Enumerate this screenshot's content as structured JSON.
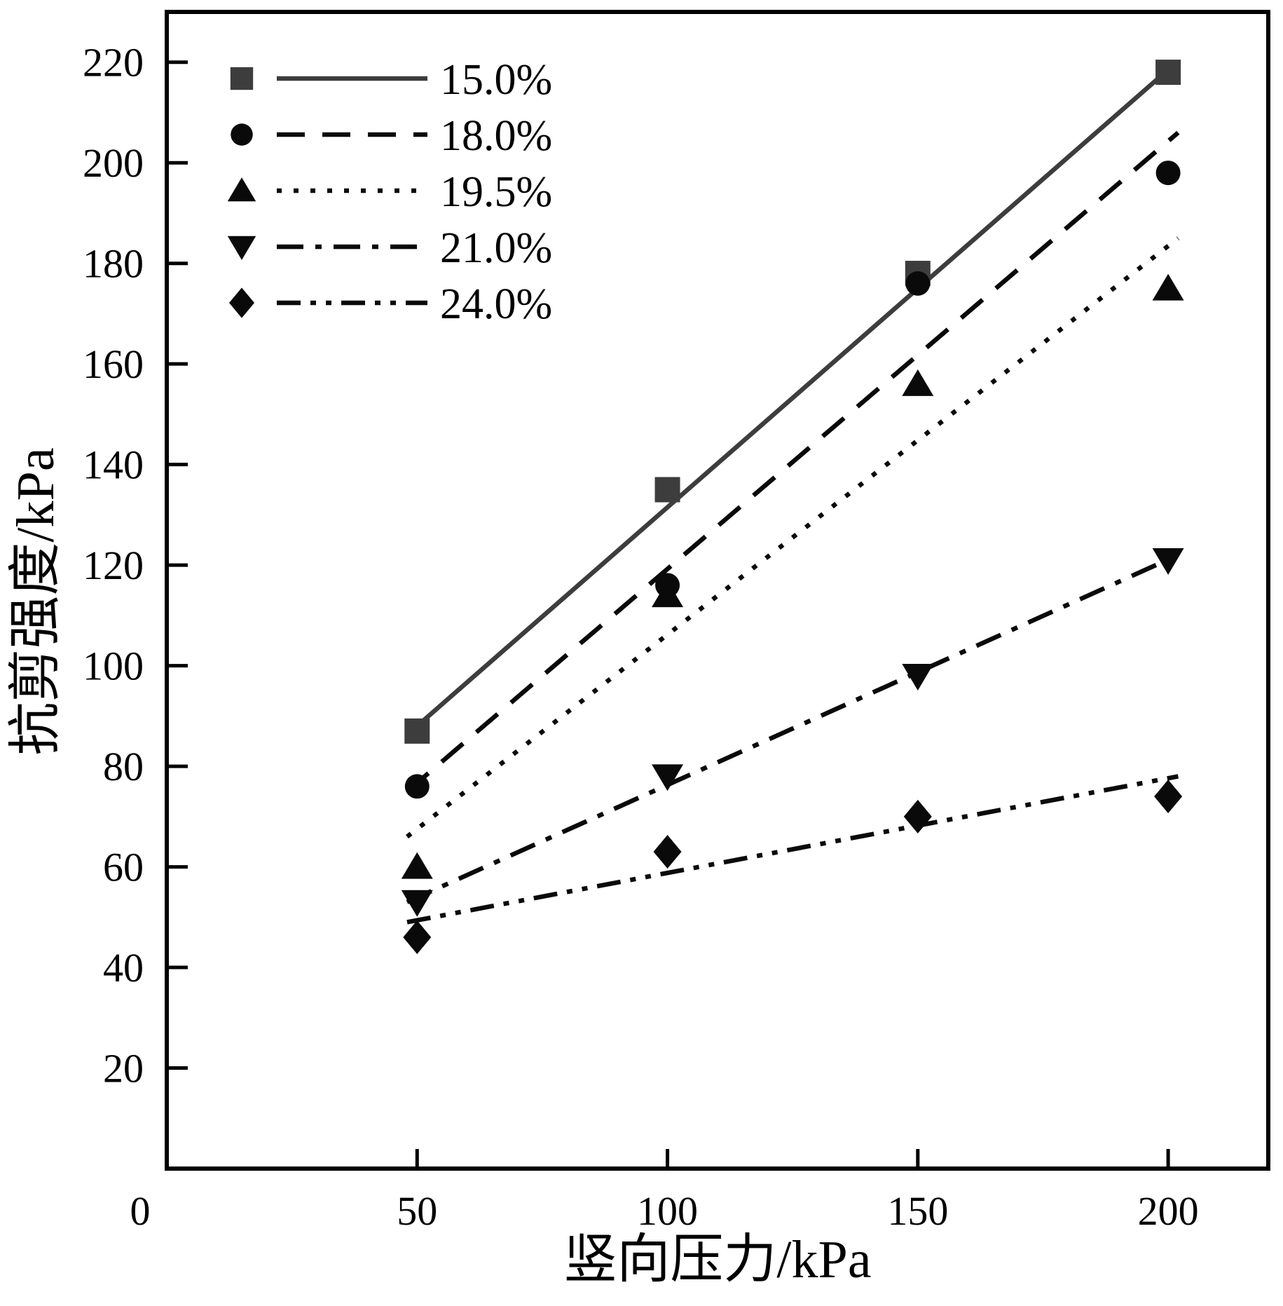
{
  "chart_data": {
    "type": "scatter",
    "title": "",
    "xlabel": "竖向压力/kPa",
    "ylabel": "抗剪强度/kPa",
    "x": [
      50,
      100,
      150,
      200
    ],
    "xlim": [
      0,
      220
    ],
    "ylim": [
      0,
      230
    ],
    "x_ticks": [
      0,
      50,
      100,
      150,
      200
    ],
    "y_ticks": [
      20,
      40,
      60,
      80,
      100,
      120,
      140,
      160,
      180,
      200,
      220
    ],
    "grid": false,
    "legend_position": "top-left",
    "background_color": "#ffffff",
    "axis_color": "#000000",
    "series": [
      {
        "name": "15.0%",
        "marker": "square",
        "line": "solid",
        "color": "#3d3d3d",
        "values": [
          87,
          135,
          178,
          218
        ],
        "trend": [
          50,
          88,
          200,
          218.5
        ]
      },
      {
        "name": "18.0%",
        "marker": "circle",
        "line": "dashed",
        "color": "#0a0a0a",
        "values": [
          76,
          116,
          176,
          198
        ],
        "trend": [
          48,
          75,
          202,
          206
        ]
      },
      {
        "name": "19.5%",
        "marker": "triangle-up",
        "line": "dotted",
        "color": "#0a0a0a",
        "values": [
          60,
          114,
          156,
          175
        ],
        "trend": [
          48,
          66,
          202,
          185
        ]
      },
      {
        "name": "21.0%",
        "marker": "triangle-down",
        "line": "dashdot",
        "color": "#0a0a0a",
        "values": [
          53,
          78,
          98,
          121
        ],
        "trend": [
          48,
          53,
          202,
          122
        ]
      },
      {
        "name": "24.0%",
        "marker": "diamond",
        "line": "dashdotdot",
        "color": "#0a0a0a",
        "values": [
          46,
          63,
          70,
          74
        ],
        "trend": [
          48,
          49,
          202,
          78
        ]
      }
    ]
  }
}
